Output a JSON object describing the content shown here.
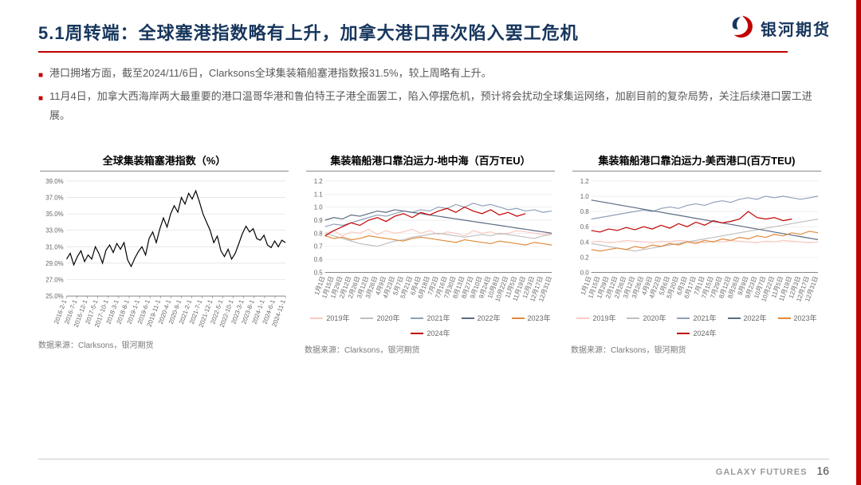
{
  "header": {
    "title": "5.1周转端：全球塞港指数略有上升，加拿大港口再次陷入罢工危机",
    "logo_text": "银河期货",
    "underline_color": "#c00000",
    "title_color": "#17365d"
  },
  "bullets": [
    "港口拥堵方面，截至2024/11/6日，Clarksons全球集装箱船塞港指数报31.5%，较上周略有上升。",
    "11月4日，加拿大西海岸两大最重要的港口温哥华港和鲁伯特王子港全面罢工，陷入停摆危机，预计将会扰动全球集运网络，加剧目前的复杂局势，关注后续港口罢工进展。"
  ],
  "charts": {
    "congestion": {
      "type": "line",
      "title": "全球集装箱塞港指数（%）",
      "source": "数据来源：Clarksons，银河期货",
      "ylim": [
        25,
        39
      ],
      "ytick_step": 2,
      "y_suffix": "%",
      "x_labels": [
        "2016-2-1",
        "2016-7-1",
        "2016-12-1",
        "2017-5-1",
        "2017-10-1",
        "2018-3-1",
        "2018-8-1",
        "2019-1-1",
        "2019-6-1",
        "2019-11-1",
        "2020-4-1",
        "2020-9-1",
        "2021-2-1",
        "2021-7-1",
        "2021-12-1",
        "2022-5-1",
        "2022-10-1",
        "2023-3-1",
        "2023-8-1",
        "2024-1-1",
        "2024-6-1",
        "2024-11-1"
      ],
      "line_color": "#000000",
      "line_width": 1.2,
      "grid_color": "#d9d9d9",
      "background_color": "#ffffff",
      "tick_fontsize": 8,
      "values": [
        29.5,
        30.2,
        28.8,
        29.8,
        30.5,
        29.2,
        30.0,
        29.5,
        31.0,
        30.2,
        29.0,
        30.6,
        31.2,
        30.3,
        31.4,
        30.7,
        31.5,
        29.4,
        28.6,
        29.6,
        30.4,
        31.0,
        30.0,
        32.0,
        32.8,
        31.5,
        33.2,
        34.5,
        33.4,
        35.0,
        36.0,
        35.2,
        37.0,
        36.2,
        37.5,
        36.8,
        37.8,
        36.5,
        35.0,
        34.0,
        33.0,
        31.5,
        32.3,
        30.5,
        29.8,
        30.7,
        29.5,
        30.2,
        31.4,
        32.6,
        33.5,
        32.8,
        33.2,
        32.0,
        31.8,
        32.4,
        31.2,
        30.9,
        31.7,
        31.0,
        31.8,
        31.5
      ]
    },
    "mediterranean": {
      "type": "multi-line",
      "title": "集装箱船港口靠泊运力-地中海（百万TEU）",
      "source": "数据来源：Clarksons，银河期货",
      "ylim": [
        0.5,
        1.2
      ],
      "ytick_step": 0.1,
      "x_labels": [
        "1月1日",
        "1月15日",
        "1月29日",
        "2月12日",
        "2月26日",
        "3月12日",
        "3月26日",
        "4月9日",
        "4月23日",
        "5月7日",
        "5月21日",
        "6月4日",
        "6月18日",
        "7月2日",
        "7月16日",
        "7月30日",
        "8月13日",
        "8月27日",
        "9月10日",
        "9月24日",
        "10月8日",
        "10月22日",
        "11月5日",
        "11月19日",
        "12月3日",
        "12月17日",
        "12月31日"
      ],
      "line_width": 1.2,
      "grid_color": "#e6e6e6",
      "background_color": "#ffffff",
      "tick_fontsize": 8,
      "series": [
        {
          "name": "2019年",
          "color": "#fbc9c0",
          "values": [
            0.8,
            0.82,
            0.78,
            0.81,
            0.8,
            0.83,
            0.79,
            0.82,
            0.8,
            0.81,
            0.83,
            0.8,
            0.82,
            0.79,
            0.81,
            0.8,
            0.78,
            0.82,
            0.8,
            0.81,
            0.79,
            0.8,
            0.82,
            0.81,
            0.8,
            0.79,
            0.8
          ]
        },
        {
          "name": "2020年",
          "color": "#bfbfbf",
          "values": [
            0.8,
            0.78,
            0.76,
            0.74,
            0.72,
            0.71,
            0.7,
            0.72,
            0.74,
            0.75,
            0.77,
            0.78,
            0.79,
            0.8,
            0.79,
            0.78,
            0.77,
            0.78,
            0.79,
            0.78,
            0.8,
            0.79,
            0.78,
            0.77,
            0.76,
            0.78,
            0.79
          ]
        },
        {
          "name": "2021年",
          "color": "#8fa0b8",
          "values": [
            0.85,
            0.87,
            0.86,
            0.88,
            0.9,
            0.92,
            0.94,
            0.93,
            0.95,
            0.97,
            0.96,
            0.98,
            0.97,
            1.0,
            0.99,
            1.02,
            1.0,
            1.03,
            1.01,
            1.02,
            1.0,
            0.98,
            0.99,
            0.97,
            0.98,
            0.96,
            0.97
          ]
        },
        {
          "name": "2022年",
          "color": "#5b6b82",
          "values": [
            0.9,
            0.92,
            0.91,
            0.94,
            0.93,
            0.95,
            0.97,
            0.96,
            0.98,
            0.97,
            0.96,
            0.95,
            0.94,
            0.93,
            0.92,
            0.91,
            0.9,
            0.89,
            0.88,
            0.87,
            0.86,
            0.85,
            0.84,
            0.83,
            0.82,
            0.81,
            0.8
          ]
        },
        {
          "name": "2023年",
          "color": "#e08a3c",
          "values": [
            0.78,
            0.76,
            0.77,
            0.75,
            0.76,
            0.78,
            0.77,
            0.76,
            0.75,
            0.74,
            0.76,
            0.77,
            0.76,
            0.75,
            0.74,
            0.73,
            0.75,
            0.74,
            0.73,
            0.72,
            0.74,
            0.73,
            0.72,
            0.71,
            0.73,
            0.72,
            0.71
          ]
        },
        {
          "name": "2024年",
          "color": "#c00000",
          "values": [
            0.78,
            0.82,
            0.85,
            0.88,
            0.86,
            0.9,
            0.92,
            0.89,
            0.93,
            0.95,
            0.92,
            0.96,
            0.94,
            0.97,
            0.99,
            0.96,
            1.0,
            0.97,
            0.95,
            0.98,
            0.94,
            0.96,
            0.93,
            0.95
          ]
        }
      ]
    },
    "uswc": {
      "type": "multi-line",
      "title": "集装箱船港口靠泊运力-美西港口(百万TEU)",
      "source": "数据来源：Clarksons，银河期货",
      "ylim": [
        0.0,
        1.2
      ],
      "ytick_step": 0.2,
      "x_labels": [
        "1月1日",
        "1月15日",
        "1月29日",
        "2月12日",
        "2月26日",
        "3月12日",
        "3月26日",
        "4月9日",
        "4月22日",
        "5月6日",
        "5月20日",
        "6月3日",
        "6月17日",
        "7月1日",
        "7月15日",
        "7月29日",
        "8月12日",
        "8月26日",
        "9月9日",
        "9月23日",
        "10月7日",
        "10月22日",
        "11月5日",
        "11月19日",
        "12月3日",
        "12月17日",
        "12月31日"
      ],
      "line_width": 1.2,
      "grid_color": "#e6e6e6",
      "background_color": "#ffffff",
      "tick_fontsize": 8,
      "series": [
        {
          "name": "2019年",
          "color": "#fbc9c0",
          "values": [
            0.4,
            0.41,
            0.39,
            0.4,
            0.42,
            0.41,
            0.4,
            0.39,
            0.41,
            0.4,
            0.42,
            0.41,
            0.4,
            0.39,
            0.41,
            0.4,
            0.42,
            0.41,
            0.4,
            0.39,
            0.41,
            0.4,
            0.42,
            0.41,
            0.4,
            0.39,
            0.4
          ]
        },
        {
          "name": "2020年",
          "color": "#bfbfbf",
          "values": [
            0.38,
            0.36,
            0.34,
            0.32,
            0.3,
            0.28,
            0.3,
            0.32,
            0.34,
            0.36,
            0.38,
            0.4,
            0.42,
            0.44,
            0.46,
            0.48,
            0.5,
            0.52,
            0.54,
            0.56,
            0.58,
            0.6,
            0.62,
            0.64,
            0.66,
            0.68,
            0.7
          ]
        },
        {
          "name": "2021年",
          "color": "#8fa0b8",
          "values": [
            0.7,
            0.72,
            0.74,
            0.76,
            0.78,
            0.8,
            0.82,
            0.8,
            0.84,
            0.86,
            0.84,
            0.88,
            0.9,
            0.88,
            0.92,
            0.94,
            0.92,
            0.96,
            0.98,
            0.96,
            1.0,
            0.98,
            1.0,
            0.98,
            0.96,
            0.98,
            1.0
          ]
        },
        {
          "name": "2022年",
          "color": "#5b6b82",
          "values": [
            0.95,
            0.93,
            0.91,
            0.89,
            0.87,
            0.85,
            0.83,
            0.81,
            0.79,
            0.77,
            0.75,
            0.73,
            0.71,
            0.69,
            0.67,
            0.65,
            0.63,
            0.61,
            0.59,
            0.57,
            0.55,
            0.53,
            0.51,
            0.49,
            0.47,
            0.45,
            0.43
          ]
        },
        {
          "name": "2023年",
          "color": "#e08a3c",
          "values": [
            0.3,
            0.28,
            0.3,
            0.32,
            0.3,
            0.34,
            0.32,
            0.36,
            0.34,
            0.38,
            0.36,
            0.4,
            0.38,
            0.42,
            0.4,
            0.44,
            0.42,
            0.46,
            0.44,
            0.48,
            0.46,
            0.5,
            0.48,
            0.52,
            0.5,
            0.54,
            0.52
          ]
        },
        {
          "name": "2024年",
          "color": "#c00000",
          "values": [
            0.55,
            0.53,
            0.57,
            0.55,
            0.59,
            0.56,
            0.6,
            0.57,
            0.62,
            0.58,
            0.64,
            0.6,
            0.66,
            0.62,
            0.68,
            0.65,
            0.67,
            0.7,
            0.8,
            0.72,
            0.7,
            0.72,
            0.68,
            0.7
          ]
        }
      ]
    }
  },
  "footer": {
    "company": "GALAXY FUTURES",
    "page": "16"
  },
  "colors": {
    "accent": "#c00000",
    "text_muted": "#595959"
  }
}
